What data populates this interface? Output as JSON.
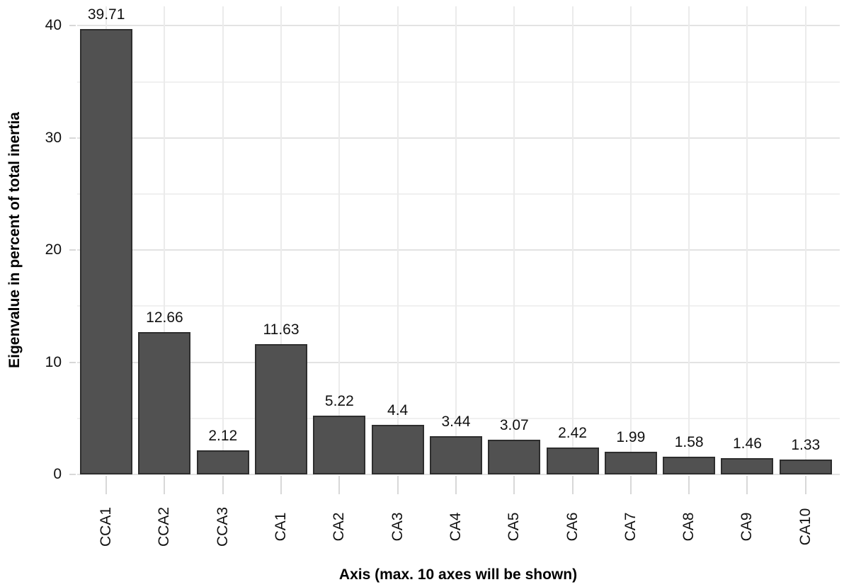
{
  "chart_data": {
    "type": "bar",
    "title": "",
    "xlabel": "Axis (max. 10 axes will be shown)",
    "ylabel": "Eigenvalue in percent of total inertia",
    "categories": [
      "CCA1",
      "CCA2",
      "CCA3",
      "CA1",
      "CA2",
      "CA3",
      "CA4",
      "CA5",
      "CA6",
      "CA7",
      "CA8",
      "CA9",
      "CA10"
    ],
    "values": [
      39.71,
      12.66,
      2.12,
      11.63,
      5.22,
      4.4,
      3.44,
      3.07,
      2.42,
      1.99,
      1.58,
      1.46,
      1.33
    ],
    "value_labels": [
      "39.71",
      "12.66",
      "2.12",
      "11.63",
      "5.22",
      "4.4",
      "3.44",
      "3.07",
      "2.42",
      "1.99",
      "1.58",
      "1.46",
      "1.33"
    ],
    "yticks_major": [
      0,
      10,
      20,
      30,
      40
    ],
    "yticks_minor": [
      5,
      15,
      25,
      35
    ],
    "ylim": [
      0,
      42.3
    ],
    "grid": true,
    "legend": false,
    "colors": {
      "bar_fill": "#515151",
      "bar_border": "#2e2e2e",
      "grid_major": "#e3e3e3",
      "grid_minor": "#f0f0f0",
      "grid_vertical": "#ebebeb",
      "tick": "#d8d8d8",
      "text": "#111111"
    }
  }
}
